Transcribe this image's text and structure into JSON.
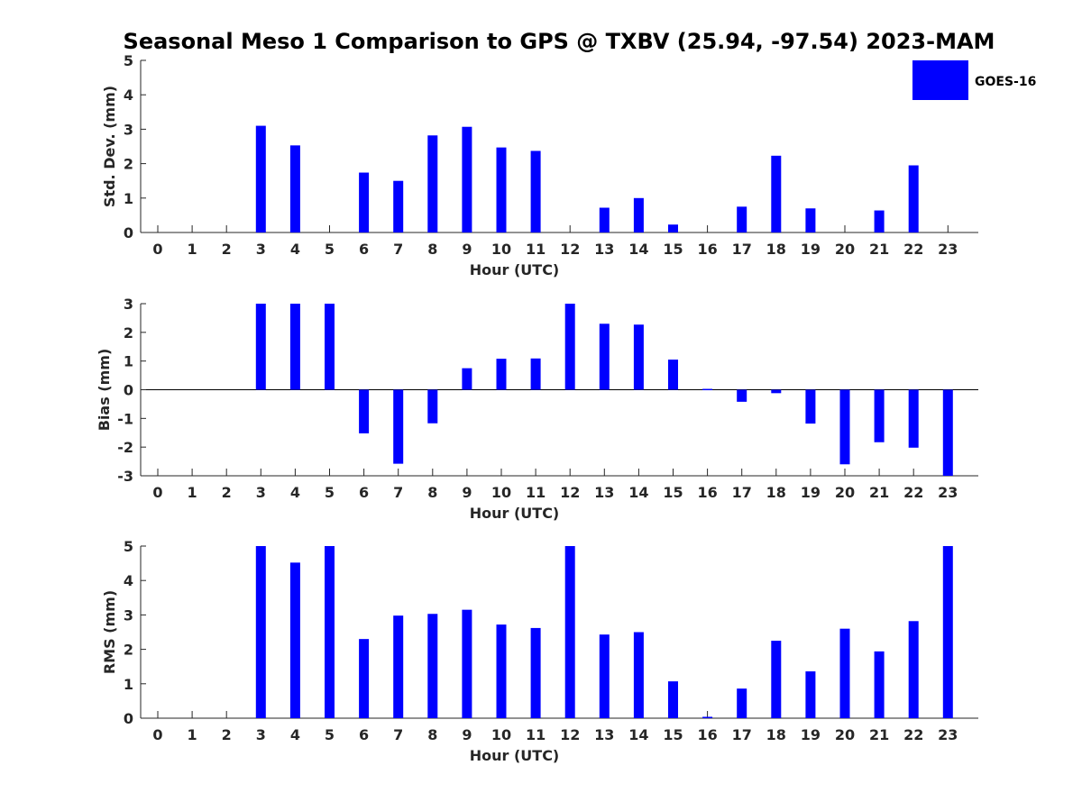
{
  "title": "Seasonal Meso 1 Comparison to GPS @ TXBV (25.94, -97.54) 2023-MAM",
  "legend": {
    "label": "GOES-16",
    "placement": "top-right",
    "color": "#0000ff"
  },
  "bar_color": "#0000ff",
  "chart_data": [
    {
      "type": "bar",
      "xlabel": "Hour (UTC)",
      "ylabel": "Std. Dev. (mm)",
      "ylim": [
        0,
        5
      ],
      "yticks": [
        0,
        1,
        2,
        3,
        4,
        5
      ],
      "categories": [
        "0",
        "1",
        "2",
        "3",
        "4",
        "5",
        "6",
        "7",
        "8",
        "9",
        "10",
        "11",
        "12",
        "13",
        "14",
        "15",
        "16",
        "17",
        "18",
        "19",
        "20",
        "21",
        "22",
        "23"
      ],
      "series": [
        {
          "name": "GOES-16",
          "values": [
            null,
            null,
            null,
            3.1,
            2.53,
            null,
            1.74,
            1.5,
            2.82,
            3.07,
            2.47,
            2.37,
            null,
            0.72,
            1.0,
            0.23,
            null,
            0.75,
            2.23,
            0.7,
            null,
            0.64,
            1.95,
            null
          ]
        }
      ]
    },
    {
      "type": "bar",
      "xlabel": "Hour (UTC)",
      "ylabel": "Bias (mm)",
      "ylim": [
        -3,
        3
      ],
      "yticks": [
        -3,
        -2,
        -1,
        0,
        1,
        2,
        3
      ],
      "categories": [
        "0",
        "1",
        "2",
        "3",
        "4",
        "5",
        "6",
        "7",
        "8",
        "9",
        "10",
        "11",
        "12",
        "13",
        "14",
        "15",
        "16",
        "17",
        "18",
        "19",
        "20",
        "21",
        "22",
        "23"
      ],
      "series": [
        {
          "name": "GOES-16",
          "values": [
            null,
            null,
            null,
            3,
            3,
            3,
            -1.52,
            -2.58,
            -1.17,
            0.75,
            1.08,
            1.09,
            3,
            2.3,
            2.27,
            1.05,
            0.03,
            -0.42,
            -0.12,
            -1.18,
            -2.6,
            -1.83,
            -2.02,
            -3
          ]
        }
      ]
    },
    {
      "type": "bar",
      "xlabel": "Hour (UTC)",
      "ylabel": "RMS (mm)",
      "ylim": [
        0,
        5
      ],
      "yticks": [
        0,
        1,
        2,
        3,
        4,
        5
      ],
      "categories": [
        "0",
        "1",
        "2",
        "3",
        "4",
        "5",
        "6",
        "7",
        "8",
        "9",
        "10",
        "11",
        "12",
        "13",
        "14",
        "15",
        "16",
        "17",
        "18",
        "19",
        "20",
        "21",
        "22",
        "23"
      ],
      "series": [
        {
          "name": "GOES-16",
          "values": [
            null,
            null,
            null,
            5,
            4.52,
            5,
            2.3,
            2.98,
            3.03,
            3.15,
            2.72,
            2.62,
            5,
            2.43,
            2.5,
            1.07,
            0.04,
            0.86,
            2.25,
            1.36,
            2.6,
            1.94,
            2.82,
            5
          ]
        }
      ]
    }
  ]
}
